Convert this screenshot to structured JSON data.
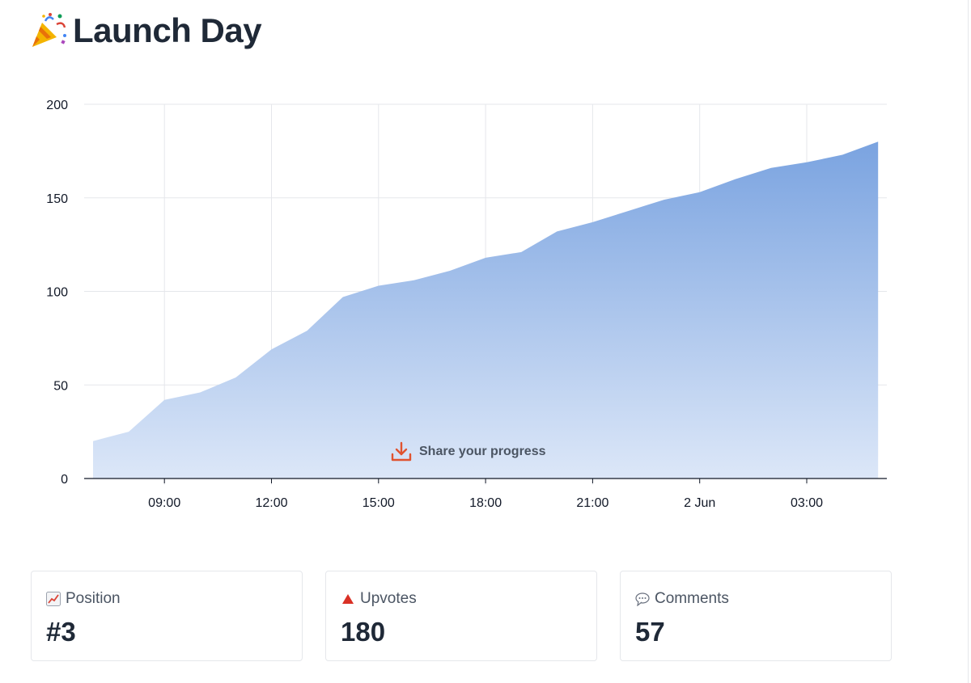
{
  "header": {
    "icon": "party-popper-icon",
    "title": "Launch Day"
  },
  "share": {
    "icon": "download-icon",
    "label": "Share your progress",
    "color": "#e0532f"
  },
  "stats": [
    {
      "name": "position",
      "icon": "chart-increasing-icon",
      "label": "Position",
      "value": "#3"
    },
    {
      "name": "upvotes",
      "icon": "red-triangle-icon",
      "label": "Upvotes",
      "value": "180"
    },
    {
      "name": "comments",
      "icon": "speech-bubble-icon",
      "label": "Comments",
      "value": "57"
    }
  ],
  "chart_data": {
    "type": "area",
    "title": "",
    "xlabel": "",
    "ylabel": "",
    "x_tick_labels": [
      "09:00",
      "12:00",
      "15:00",
      "18:00",
      "21:00",
      "2 Jun",
      "03:00"
    ],
    "y_tick_labels": [
      "0",
      "50",
      "100",
      "150",
      "200"
    ],
    "ylim": [
      0,
      200
    ],
    "grid": true,
    "fill_color_top": "#7aa3e0",
    "fill_color_bottom": "#dce7f8",
    "x_tick_values": [
      "09:00",
      "12:00",
      "15:00",
      "18:00",
      "21:00",
      "00:00",
      "03:00"
    ],
    "series": [
      {
        "x": [
          "07:00",
          "08:00",
          "09:00",
          "10:00",
          "11:00",
          "12:00",
          "13:00",
          "14:00",
          "15:00",
          "16:00",
          "17:00",
          "18:00",
          "19:00",
          "20:00",
          "21:00",
          "22:00",
          "23:00",
          "00:00",
          "01:00",
          "02:00",
          "03:00",
          "04:00",
          "05:00"
        ],
        "values": [
          20,
          25,
          42,
          46,
          54,
          69,
          79,
          97,
          103,
          106,
          111,
          118,
          121,
          132,
          137,
          143,
          149,
          153,
          160,
          166,
          169,
          173,
          180
        ]
      }
    ]
  }
}
